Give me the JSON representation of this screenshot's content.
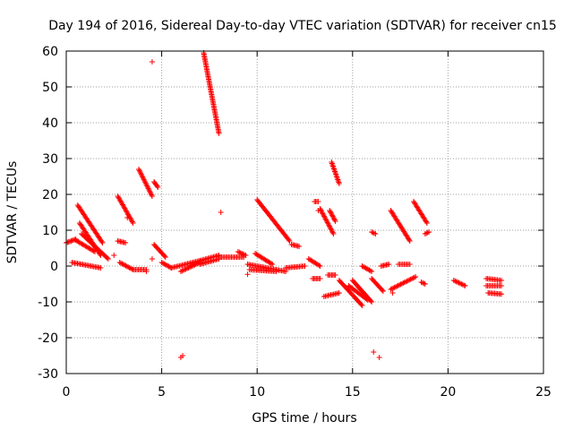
{
  "chart_data": {
    "type": "scatter",
    "title": "Day 194 of 2016, Sidereal Day-to-day VTEC variation (SDTVAR) for receiver cn15",
    "xlabel": "GPS time / hours",
    "ylabel": "SDTVAR / TECUs",
    "xlim": [
      0,
      25
    ],
    "ylim": [
      -30,
      60
    ],
    "xticks": [
      "0",
      "5",
      "10",
      "15",
      "20",
      "25"
    ],
    "yticks": [
      "-30",
      "-20",
      "-10",
      "0",
      "10",
      "20",
      "30",
      "40",
      "50",
      "60"
    ],
    "grid": true,
    "marker": "+",
    "color": "#ff0000",
    "segments": [
      {
        "x0": 0.0,
        "y0": 6.5,
        "x1": 0.5,
        "y1": 7.5
      },
      {
        "x0": 0.5,
        "y0": 7.2,
        "x1": 1.5,
        "y1": 4.0
      },
      {
        "x0": 0.6,
        "y0": 17.0,
        "x1": 1.9,
        "y1": 6.5
      },
      {
        "x0": 0.7,
        "y0": 12.0,
        "x1": 1.8,
        "y1": 3.0
      },
      {
        "x0": 0.8,
        "y0": 9.0,
        "x1": 2.2,
        "y1": 2.0
      },
      {
        "x0": 0.3,
        "y0": 1.0,
        "x1": 1.8,
        "y1": -0.5
      },
      {
        "x0": 2.7,
        "y0": 19.5,
        "x1": 3.5,
        "y1": 12.0
      },
      {
        "x0": 2.7,
        "y0": 7.0,
        "x1": 3.1,
        "y1": 6.5
      },
      {
        "x0": 2.8,
        "y0": 1.0,
        "x1": 3.5,
        "y1": -1.0
      },
      {
        "x0": 3.5,
        "y0": -1.0,
        "x1": 4.2,
        "y1": -1.0
      },
      {
        "x0": 3.8,
        "y0": 27.0,
        "x1": 4.5,
        "y1": 19.5
      },
      {
        "x0": 4.6,
        "y0": 23.5,
        "x1": 4.8,
        "y1": 22.0
      },
      {
        "x0": 4.6,
        "y0": 6.0,
        "x1": 5.2,
        "y1": 2.5
      },
      {
        "x0": 5.0,
        "y0": 1.0,
        "x1": 5.5,
        "y1": -0.5
      },
      {
        "x0": 5.5,
        "y0": -0.5,
        "x1": 7.0,
        "y1": 1.5
      },
      {
        "x0": 6.0,
        "y0": -1.5,
        "x1": 7.0,
        "y1": 1.0
      },
      {
        "x0": 7.0,
        "y0": 1.5,
        "x1": 8.0,
        "y1": 3.0
      },
      {
        "x0": 7.0,
        "y0": 0.5,
        "x1": 8.0,
        "y1": 2.0
      },
      {
        "x0": 8.0,
        "y0": 2.5,
        "x1": 9.3,
        "y1": 2.5
      },
      {
        "x0": 9.0,
        "y0": 4.0,
        "x1": 9.4,
        "y1": 3.0
      },
      {
        "x0": 7.2,
        "y0": 59.5,
        "x1": 8.0,
        "y1": 37.0
      },
      {
        "x0": 9.5,
        "y0": 0.5,
        "x1": 11.5,
        "y1": -1.5
      },
      {
        "x0": 9.6,
        "y0": -1.0,
        "x1": 11.0,
        "y1": -1.5
      },
      {
        "x0": 9.9,
        "y0": 3.5,
        "x1": 10.8,
        "y1": 0.5
      },
      {
        "x0": 10.0,
        "y0": 18.5,
        "x1": 11.7,
        "y1": 7.0
      },
      {
        "x0": 11.8,
        "y0": 6.0,
        "x1": 12.2,
        "y1": 5.5
      },
      {
        "x0": 11.5,
        "y0": -0.5,
        "x1": 12.5,
        "y1": 0.0
      },
      {
        "x0": 12.7,
        "y0": 2.0,
        "x1": 13.3,
        "y1": 0.0
      },
      {
        "x0": 12.9,
        "y0": -3.5,
        "x1": 13.3,
        "y1": -3.5
      },
      {
        "x0": 13.0,
        "y0": 18.0,
        "x1": 13.2,
        "y1": 18.0
      },
      {
        "x0": 13.3,
        "y0": 16.0,
        "x1": 14.0,
        "y1": 9.0
      },
      {
        "x0": 13.8,
        "y0": 15.5,
        "x1": 14.1,
        "y1": 12.5
      },
      {
        "x0": 13.9,
        "y0": 29.0,
        "x1": 14.3,
        "y1": 23.0
      },
      {
        "x0": 13.7,
        "y0": -2.5,
        "x1": 14.1,
        "y1": -2.5
      },
      {
        "x0": 13.5,
        "y0": -8.5,
        "x1": 14.3,
        "y1": -7.5
      },
      {
        "x0": 14.3,
        "y0": -4.0,
        "x1": 15.5,
        "y1": -11.0
      },
      {
        "x0": 14.8,
        "y0": -5.5,
        "x1": 15.8,
        "y1": -9.5
      },
      {
        "x0": 15.0,
        "y0": -4.0,
        "x1": 16.0,
        "y1": -10.0
      },
      {
        "x0": 15.5,
        "y0": 0.0,
        "x1": 16.0,
        "y1": -1.5
      },
      {
        "x0": 16.0,
        "y0": 9.5,
        "x1": 16.2,
        "y1": 9.0
      },
      {
        "x0": 16.0,
        "y0": -3.5,
        "x1": 16.6,
        "y1": -7.0
      },
      {
        "x0": 16.5,
        "y0": 0.0,
        "x1": 16.9,
        "y1": 0.5
      },
      {
        "x0": 17.0,
        "y0": -6.5,
        "x1": 18.3,
        "y1": -3.0
      },
      {
        "x0": 17.4,
        "y0": 0.5,
        "x1": 18.0,
        "y1": 0.5
      },
      {
        "x0": 17.0,
        "y0": 15.5,
        "x1": 18.0,
        "y1": 7.0
      },
      {
        "x0": 18.2,
        "y0": 18.0,
        "x1": 18.9,
        "y1": 12.0
      },
      {
        "x0": 18.6,
        "y0": -4.5,
        "x1": 18.8,
        "y1": -5.0
      },
      {
        "x0": 18.8,
        "y0": 9.0,
        "x1": 19.0,
        "y1": 9.5
      },
      {
        "x0": 20.3,
        "y0": -4.0,
        "x1": 20.9,
        "y1": -5.5
      },
      {
        "x0": 22.0,
        "y0": -3.5,
        "x1": 22.8,
        "y1": -4.0
      },
      {
        "x0": 22.0,
        "y0": -5.5,
        "x1": 22.8,
        "y1": -5.5
      },
      {
        "x0": 22.1,
        "y0": -7.5,
        "x1": 22.8,
        "y1": -7.8
      }
    ],
    "points": [
      {
        "x": 4.5,
        "y": 57.0
      },
      {
        "x": 4.2,
        "y": -1.5
      },
      {
        "x": 4.5,
        "y": 2.0
      },
      {
        "x": 6.0,
        "y": -25.5
      },
      {
        "x": 6.1,
        "y": -25.0
      },
      {
        "x": 8.1,
        "y": 15.0
      },
      {
        "x": 9.5,
        "y": -2.3
      },
      {
        "x": 13.2,
        "y": 15.5
      },
      {
        "x": 16.1,
        "y": -24.0
      },
      {
        "x": 16.4,
        "y": -25.5
      },
      {
        "x": 17.1,
        "y": -7.5
      },
      {
        "x": 3.2,
        "y": 13.5
      },
      {
        "x": 2.5,
        "y": 3.0
      }
    ]
  }
}
